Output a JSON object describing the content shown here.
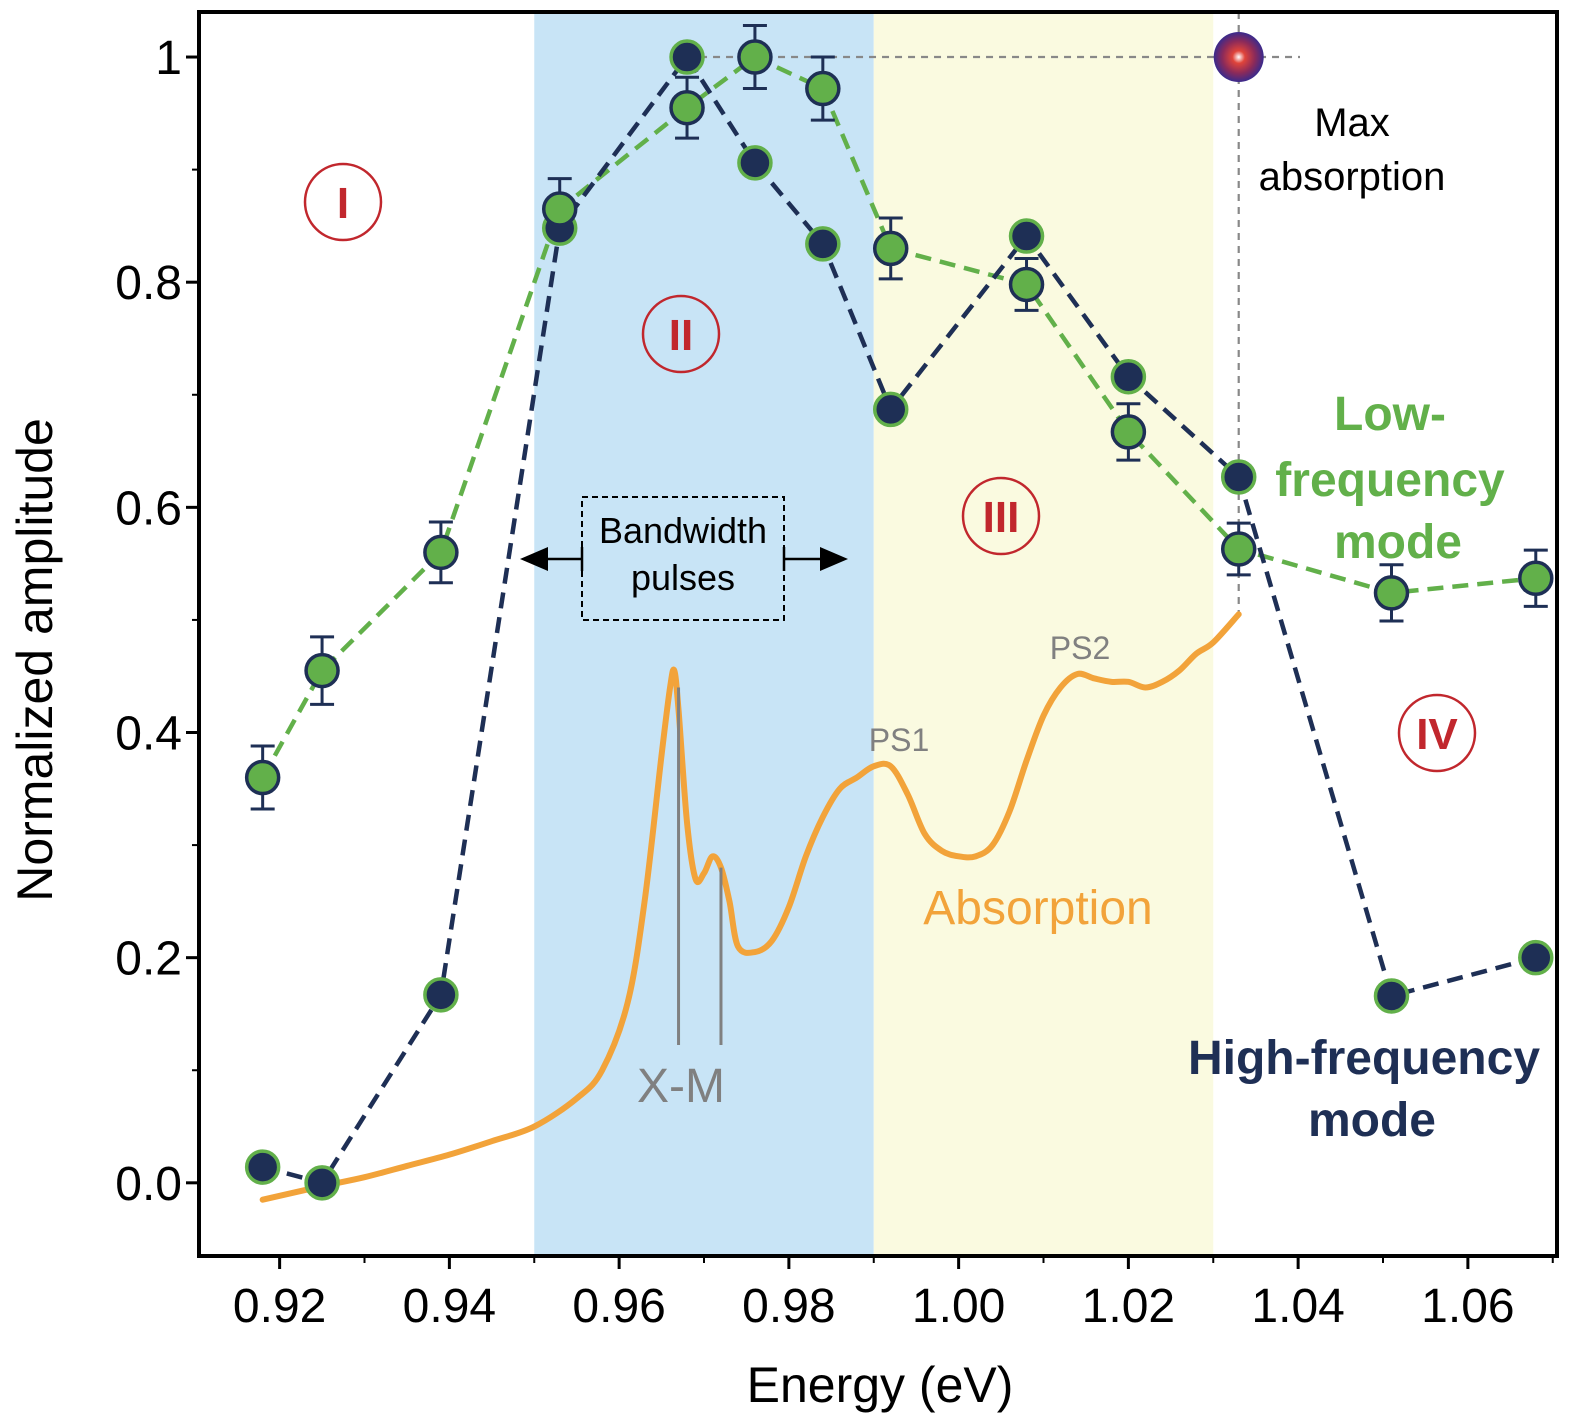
{
  "chart_data": {
    "type": "line",
    "xlabel": "Energy (eV)",
    "ylabel": "Normalized amplitude",
    "xlim": [
      0.9105,
      1.0705
    ],
    "ylim": [
      -0.065,
      1.04
    ],
    "x_ticks": [
      0.92,
      0.94,
      0.96,
      0.98,
      1.0,
      1.02,
      1.04,
      1.06
    ],
    "x_tick_labels": [
      "0.92",
      "0.94",
      "0.96",
      "0.98",
      "1.00",
      "1.02",
      "1.04",
      "1.06"
    ],
    "y_ticks": [
      0.0,
      0.2,
      0.4,
      0.6,
      0.8,
      1.0
    ],
    "y_tick_labels": [
      "0.0",
      "0.2",
      "0.4",
      "0.6",
      "0.8",
      "1"
    ],
    "regions": [
      {
        "label": "I",
        "color": "#ffffff"
      },
      {
        "label": "II",
        "x_range": [
          0.95,
          0.99
        ],
        "color": "#c8e4f6"
      },
      {
        "label": "III",
        "x_range": [
          0.99,
          1.03
        ],
        "color": "#fafae0"
      },
      {
        "label": "IV",
        "color": "#ffffff"
      }
    ],
    "series": [
      {
        "name": "Low-frequency mode",
        "color": "#62b04a",
        "style": "dashed-markers-errorbars",
        "x": [
          0.918,
          0.925,
          0.939,
          0.953,
          0.968,
          0.976,
          0.984,
          0.992,
          1.008,
          1.02,
          1.033,
          1.051,
          1.068
        ],
        "y": [
          0.36,
          0.455,
          0.56,
          0.865,
          0.955,
          1.0,
          0.972,
          0.83,
          0.798,
          0.667,
          0.563,
          0.524,
          0.537
        ],
        "err": [
          0.028,
          0.03,
          0.027,
          0.027,
          0.027,
          0.028,
          0.028,
          0.027,
          0.023,
          0.025,
          0.023,
          0.025,
          0.025
        ]
      },
      {
        "name": "High-frequency mode",
        "color": "#1e2f55",
        "style": "dashed-markers",
        "x": [
          0.918,
          0.925,
          0.939,
          0.953,
          0.968,
          0.976,
          0.984,
          0.992,
          1.008,
          1.02,
          1.033,
          1.051,
          1.068
        ],
        "y": [
          0.014,
          0.0,
          0.167,
          0.848,
          1.0,
          0.906,
          0.834,
          0.687,
          0.841,
          0.716,
          0.627,
          0.166,
          0.2
        ]
      },
      {
        "name": "Absorption",
        "color": "#f2a33a",
        "style": "solid",
        "x": [
          0.918,
          0.925,
          0.93,
          0.935,
          0.94,
          0.945,
          0.95,
          0.955,
          0.958,
          0.961,
          0.963,
          0.965,
          0.966,
          0.9665,
          0.967,
          0.968,
          0.969,
          0.97,
          0.971,
          0.972,
          0.973,
          0.974,
          0.976,
          0.978,
          0.98,
          0.982,
          0.984,
          0.986,
          0.988,
          0.99,
          0.992,
          0.994,
          0.996,
          0.998,
          1.0,
          1.002,
          1.004,
          1.006,
          1.008,
          1.01,
          1.012,
          1.014,
          1.016,
          1.018,
          1.02,
          1.022,
          1.024,
          1.026,
          1.028,
          1.03,
          1.033
        ],
        "y": [
          -0.015,
          -0.003,
          0.005,
          0.015,
          0.025,
          0.037,
          0.05,
          0.075,
          0.1,
          0.16,
          0.25,
          0.38,
          0.44,
          0.455,
          0.42,
          0.32,
          0.27,
          0.275,
          0.29,
          0.28,
          0.25,
          0.21,
          0.205,
          0.215,
          0.245,
          0.29,
          0.325,
          0.35,
          0.36,
          0.37,
          0.37,
          0.345,
          0.31,
          0.295,
          0.29,
          0.29,
          0.3,
          0.33,
          0.375,
          0.415,
          0.44,
          0.452,
          0.448,
          0.445,
          0.445,
          0.44,
          0.445,
          0.455,
          0.47,
          0.48,
          0.505
        ]
      }
    ],
    "max_absorption_marker": {
      "x": 1.033,
      "y": 1.0
    },
    "annotations": {
      "region_I": "I",
      "region_II": "II",
      "region_III": "III",
      "region_IV": "IV",
      "bandwidth_line1": "Bandwidth",
      "bandwidth_line2": "pulses",
      "max_abs_line1": "Max",
      "max_abs_line2": "absorption",
      "low_freq_line1": "Low-",
      "low_freq_line2": "frequency",
      "low_freq_line3": "mode",
      "high_freq_line1": "High-frequency",
      "high_freq_line2": "mode",
      "absorption": "Absorption",
      "ps1": "PS1",
      "ps2": "PS2",
      "xm": "X-M"
    },
    "xm_lines_x": [
      0.967,
      0.972
    ],
    "grid": false,
    "colors": {
      "blue_region": "#c8e4f6",
      "yellow_region": "#fafae0",
      "green": "#62b04a",
      "navy": "#1e2f55",
      "orange": "#f2a33a",
      "roman_red": "#c1272d",
      "gray": "#808080"
    }
  }
}
